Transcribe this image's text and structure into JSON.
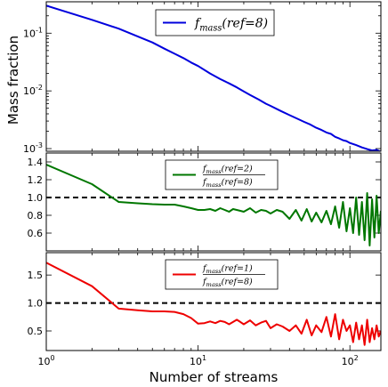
{
  "chart_data": [
    {
      "type": "line",
      "panel": "top",
      "xscale": "log",
      "yscale": "log",
      "xlim": [
        1,
        160
      ],
      "ylim": [
        0.0009,
        0.35
      ],
      "ylabel": "Mass fraction",
      "yticks": [
        {
          "v": 0.1,
          "base": "10",
          "exp": "-1"
        },
        {
          "v": 0.01,
          "base": "10",
          "exp": "-2"
        },
        {
          "v": 0.001,
          "base": "10",
          "exp": "-3"
        }
      ],
      "legend": {
        "location": "top-right",
        "entries": [
          {
            "label": "f_mass(ref=8)"
          }
        ]
      },
      "series": [
        {
          "color": "#0000dd",
          "x": [
            1,
            2,
            3,
            4,
            5,
            6,
            7,
            8,
            9,
            10,
            12,
            14,
            16,
            18,
            20,
            22,
            25,
            28,
            30,
            35,
            40,
            45,
            50,
            55,
            60,
            65,
            70,
            75,
            80,
            85,
            90,
            95,
            100,
            110,
            120,
            130,
            140,
            150,
            160
          ],
          "y": [
            0.3,
            0.17,
            0.12,
            0.088,
            0.069,
            0.054,
            0.044,
            0.037,
            0.031,
            0.027,
            0.02,
            0.016,
            0.0135,
            0.0115,
            0.0098,
            0.0085,
            0.0071,
            0.006,
            0.0055,
            0.0045,
            0.0038,
            0.0033,
            0.0029,
            0.0026,
            0.0023,
            0.0021,
            0.0019,
            0.0018,
            0.0016,
            0.0015,
            0.0014,
            0.00135,
            0.00125,
            0.00115,
            0.00105,
            0.00098,
            0.00093,
            0.00095,
            0.00088
          ]
        }
      ]
    },
    {
      "type": "line",
      "panel": "middle",
      "xscale": "log",
      "xlim": [
        1,
        160
      ],
      "ylim": [
        0.4,
        1.5
      ],
      "yticks": [
        {
          "v": 0.6,
          "label": "0.6"
        },
        {
          "v": 0.8,
          "label": "0.8"
        },
        {
          "v": 1.0,
          "label": "1.0"
        },
        {
          "v": 1.2,
          "label": "1.2"
        },
        {
          "v": 1.4,
          "label": "1.4"
        }
      ],
      "reference_line": 1.0,
      "legend": {
        "location": "top-right",
        "entries": [
          {
            "numerator": "f_mass(ref=2)",
            "denominator": "f_mass(ref=8)"
          }
        ]
      },
      "series": [
        {
          "color": "#007700",
          "x": [
            1,
            2,
            3,
            4,
            5,
            6,
            7,
            8,
            9,
            10,
            11,
            12,
            13,
            14,
            15,
            16,
            17,
            18,
            19,
            20,
            22,
            24,
            26,
            28,
            30,
            33,
            36,
            40,
            44,
            48,
            52,
            56,
            60,
            65,
            70,
            75,
            80,
            85,
            90,
            95,
            100,
            105,
            110,
            115,
            120,
            125,
            130,
            135,
            140,
            145,
            150,
            155,
            160
          ],
          "y": [
            1.37,
            1.15,
            0.95,
            0.935,
            0.925,
            0.92,
            0.92,
            0.9,
            0.88,
            0.86,
            0.86,
            0.87,
            0.85,
            0.88,
            0.86,
            0.84,
            0.87,
            0.86,
            0.85,
            0.84,
            0.88,
            0.83,
            0.86,
            0.85,
            0.82,
            0.86,
            0.84,
            0.76,
            0.86,
            0.74,
            0.87,
            0.73,
            0.83,
            0.72,
            0.85,
            0.7,
            0.9,
            0.66,
            0.95,
            0.62,
            0.88,
            0.6,
            1.0,
            0.58,
            0.95,
            0.52,
            1.05,
            0.46,
            0.98,
            0.55,
            1.02,
            0.6,
            0.85
          ]
        }
      ]
    },
    {
      "type": "line",
      "panel": "bottom",
      "xscale": "log",
      "xlim": [
        1,
        160
      ],
      "ylim": [
        0.15,
        1.9
      ],
      "xlabel": "Number of streams",
      "xticks": [
        {
          "v": 1,
          "base": "10",
          "exp": "0"
        },
        {
          "v": 10,
          "base": "10",
          "exp": "1"
        },
        {
          "v": 100,
          "base": "10",
          "exp": "2"
        }
      ],
      "yticks": [
        {
          "v": 0.5,
          "label": "0.5"
        },
        {
          "v": 1.0,
          "label": "1.0"
        },
        {
          "v": 1.5,
          "label": "1.5"
        }
      ],
      "reference_line": 1.0,
      "legend": {
        "location": "top-right",
        "entries": [
          {
            "numerator": "f_mass(ref=1)",
            "denominator": "f_mass(ref=8)"
          }
        ]
      },
      "series": [
        {
          "color": "#ee0000",
          "x": [
            1,
            2,
            3,
            4,
            5,
            6,
            7,
            8,
            9,
            10,
            11,
            12,
            13,
            14,
            15,
            16,
            17,
            18,
            19,
            20,
            22,
            24,
            26,
            28,
            30,
            33,
            36,
            40,
            44,
            48,
            52,
            56,
            60,
            65,
            70,
            75,
            80,
            85,
            90,
            95,
            100,
            105,
            110,
            115,
            120,
            125,
            130,
            135,
            140,
            145,
            150,
            155,
            160
          ],
          "y": [
            1.72,
            1.3,
            0.9,
            0.87,
            0.85,
            0.85,
            0.84,
            0.8,
            0.73,
            0.63,
            0.64,
            0.67,
            0.64,
            0.68,
            0.66,
            0.62,
            0.66,
            0.7,
            0.66,
            0.62,
            0.69,
            0.6,
            0.65,
            0.68,
            0.55,
            0.62,
            0.58,
            0.5,
            0.6,
            0.45,
            0.7,
            0.42,
            0.6,
            0.48,
            0.75,
            0.4,
            0.8,
            0.35,
            0.7,
            0.5,
            0.6,
            0.3,
            0.65,
            0.35,
            0.6,
            0.25,
            0.7,
            0.3,
            0.55,
            0.35,
            0.6,
            0.4,
            0.5
          ]
        }
      ]
    }
  ]
}
